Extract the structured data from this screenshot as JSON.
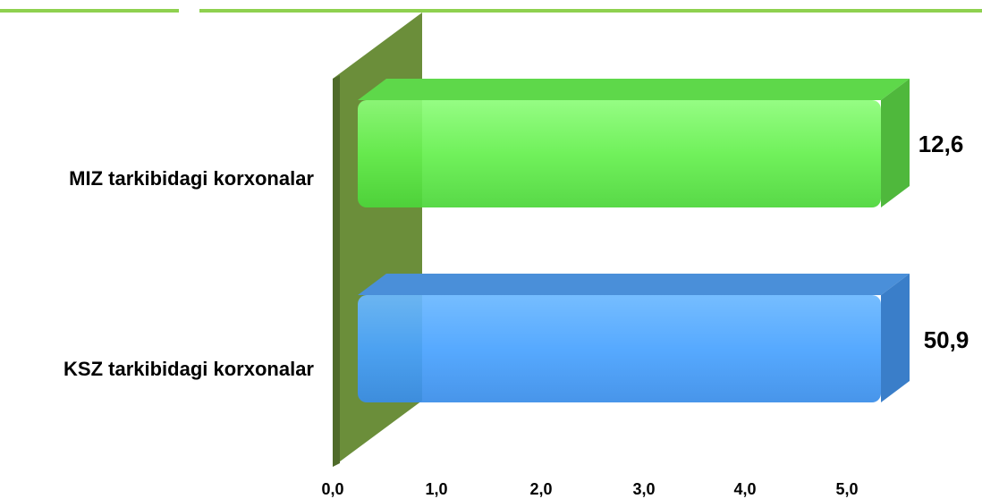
{
  "colors": {
    "top_bar": "#8fd14f",
    "wall": "#6b8e3a",
    "wall_dark": "#4f6b2a",
    "series_colors": [
      "#66ee55",
      "#4aa3ff"
    ]
  },
  "chart_data": {
    "type": "bar",
    "orientation": "horizontal",
    "categories": [
      "MIZ tarkibidagi korxonalar",
      "KSZ tarkibidagi korxonalar"
    ],
    "values": [
      12.6,
      50.9
    ],
    "value_labels": [
      "12,6",
      "50,9"
    ],
    "x_ticks": [
      "0,0",
      "1,0",
      "2,0",
      "3,0",
      "4,0",
      "5,0"
    ],
    "xlim": [
      0,
      5
    ],
    "grid": false,
    "style": "3d"
  }
}
